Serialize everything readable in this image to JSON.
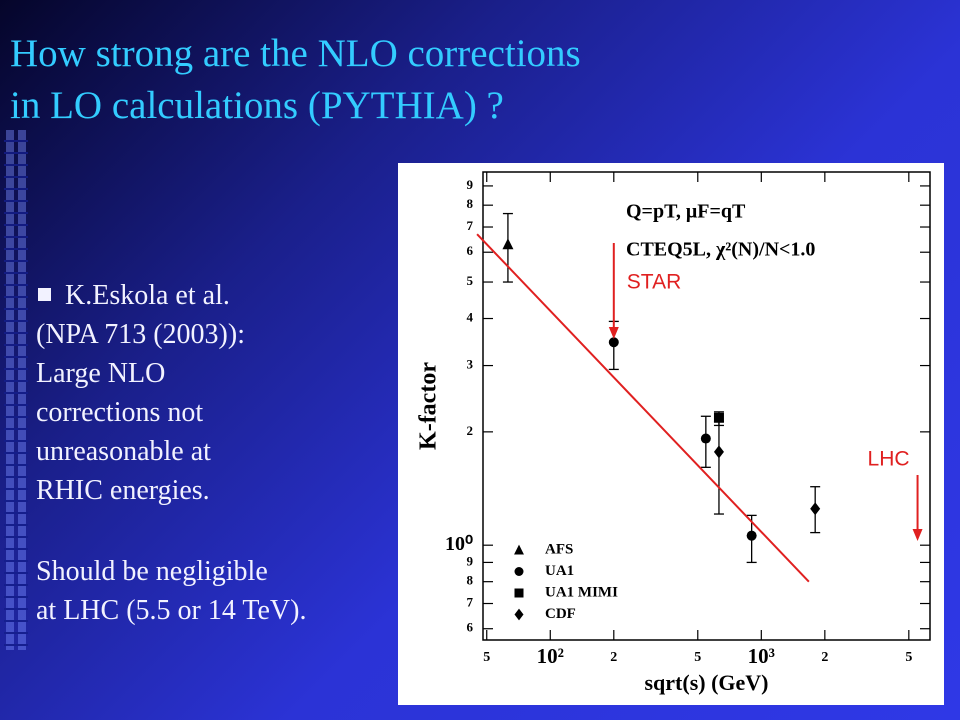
{
  "title": [
    "How strong are the NLO corrections",
    "in LO calculations (PYTHIA) ?"
  ],
  "bullet": "K.Eskola et al.",
  "body": [
    "(NPA 713 (2003)):",
    "Large NLO",
    "corrections not",
    "unreasonable at",
    "RHIC energies.",
    "Should be negligible",
    "at LHC (5.5 or 14 TeV)."
  ],
  "chart_data": {
    "type": "scatter",
    "xlabel": "sqrt(s) (GeV)",
    "ylabel": "K-factor",
    "xlog": true,
    "ylog": true,
    "xlim": [
      48,
      6300
    ],
    "ylim": [
      0.56,
      9.8
    ],
    "xticks": [
      {
        "value": 50,
        "label": "5"
      },
      {
        "value": 100,
        "label": "10²"
      },
      {
        "value": 200,
        "label": "2"
      },
      {
        "value": 500,
        "label": "5"
      },
      {
        "value": 1000,
        "label": "10³"
      },
      {
        "value": 2000,
        "label": "2"
      },
      {
        "value": 5000,
        "label": "5"
      }
    ],
    "yticks": [
      {
        "value": 0.6,
        "label": "6"
      },
      {
        "value": 0.7,
        "label": "7"
      },
      {
        "value": 0.8,
        "label": "8"
      },
      {
        "value": 0.9,
        "label": "9"
      },
      {
        "value": 1,
        "label": "10⁰"
      },
      2,
      3,
      4,
      5,
      6,
      7,
      8,
      9
    ],
    "annotations": [
      "Q=pT, μF=qT",
      "CTEQ5L, χ²(N)/N<1.0"
    ],
    "series": [
      {
        "name": "AFS",
        "marker": "triangle",
        "color": "#000000",
        "x": [
          63
        ],
        "values": [
          6.3
        ],
        "upper": [
          7.6
        ],
        "lower": [
          5.0
        ]
      },
      {
        "name": "UA1",
        "marker": "circle",
        "color": "#000000",
        "x": [
          200,
          546,
          900
        ],
        "values": [
          3.46,
          1.92,
          1.06
        ],
        "upper": [
          3.93,
          2.2,
          1.2
        ],
        "lower": [
          2.93,
          1.61,
          0.9
        ]
      },
      {
        "name": "UA1 MIMI",
        "marker": "square",
        "color": "#000000",
        "x": [
          630
        ],
        "values": [
          2.18
        ],
        "upper": [
          2.26
        ],
        "lower": [
          2.08
        ]
      },
      {
        "name": "CDF",
        "marker": "diamond",
        "color": "#000000",
        "x": [
          630,
          1800
        ],
        "values": [
          1.77,
          1.25
        ],
        "upper": [
          2.13,
          1.43
        ],
        "lower": [
          1.21,
          1.08
        ]
      }
    ],
    "fit_line": {
      "color": "#e02020",
      "x": [
        45,
        1680
      ],
      "values": [
        6.7,
        0.8
      ]
    },
    "arrows": [
      {
        "label": "STAR",
        "x": 200,
        "color": "#e02020"
      },
      {
        "label": "LHC",
        "x": 5500,
        "color": "#e02020"
      }
    ]
  }
}
